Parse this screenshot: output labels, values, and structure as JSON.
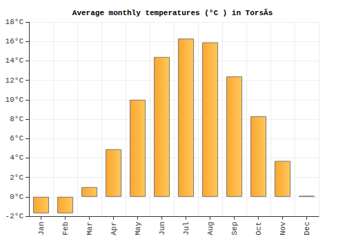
{
  "chart_data": {
    "type": "bar",
    "title": "Average monthly temperatures (°C ) in TorsÃs",
    "categories": [
      "Jan",
      "Feb",
      "Mar",
      "Apr",
      "May",
      "Jun",
      "Jul",
      "Aug",
      "Sep",
      "Oct",
      "Nov",
      "Dec"
    ],
    "values": [
      -1.7,
      -1.7,
      1.0,
      4.9,
      10.0,
      14.4,
      16.3,
      15.9,
      12.4,
      8.3,
      3.7,
      0.1
    ],
    "color": "#fba62f",
    "ylim": [
      -2,
      18
    ],
    "yticks": [
      {
        "value": -2,
        "label": "-2°C"
      },
      {
        "value": 0,
        "label": "0°C"
      },
      {
        "value": 2,
        "label": "2°C"
      },
      {
        "value": 4,
        "label": "4°C"
      },
      {
        "value": 6,
        "label": "6°C"
      },
      {
        "value": 8,
        "label": "8°C"
      },
      {
        "value": 10,
        "label": "10°C"
      },
      {
        "value": 12,
        "label": "12°C"
      },
      {
        "value": 14,
        "label": "14°C"
      },
      {
        "value": 16,
        "label": "16°C"
      },
      {
        "value": 18,
        "label": "18°C"
      }
    ],
    "grid": true
  }
}
